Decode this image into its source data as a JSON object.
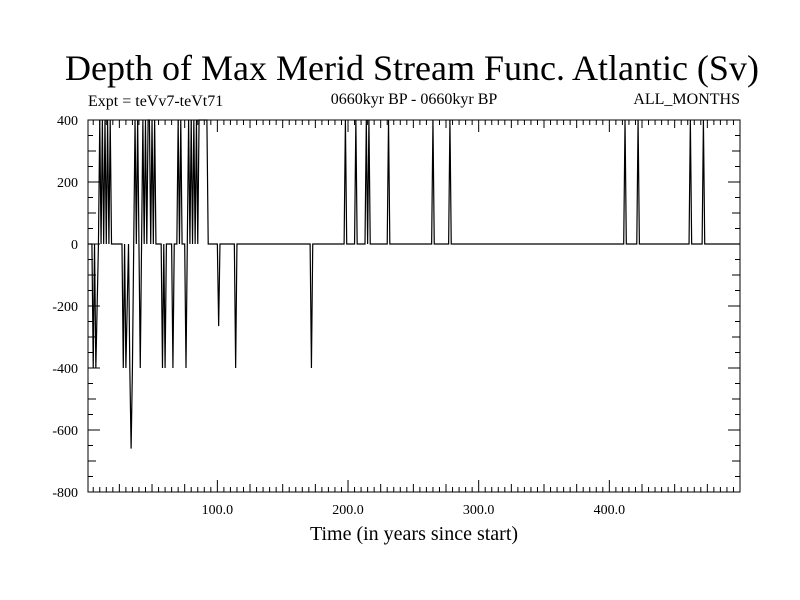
{
  "chart_data": {
    "type": "line",
    "title": "Depth of Max Merid Stream Func. Atlantic (Sv)",
    "expt_label": "Expt = teVv7-teVt71",
    "period_label": "0660kyr BP - 0660kyr BP",
    "months_label": "ALL_MONTHS",
    "xlabel": "Time (in years since start)",
    "ylabel": "",
    "xlim": [
      1,
      500
    ],
    "ylim": [
      -800,
      400
    ],
    "x_ticks": [
      100,
      200,
      300,
      400
    ],
    "x_tick_labels": [
      "100.0",
      "200.0",
      "300.0",
      "400.0"
    ],
    "y_ticks": [
      -800,
      -600,
      -400,
      -200,
      0,
      200,
      400
    ],
    "y_tick_labels": [
      "-800",
      "-600",
      "-400",
      "-200",
      "0",
      "200",
      "400"
    ],
    "grid": false,
    "series": [
      {
        "color": "#000000",
        "points": [
          [
            1,
            0
          ],
          [
            4,
            0
          ],
          [
            5,
            -400
          ],
          [
            6,
            0
          ],
          [
            7,
            -400
          ],
          [
            8,
            -200
          ],
          [
            9,
            0
          ],
          [
            10,
            400
          ],
          [
            11,
            0
          ],
          [
            12,
            400
          ],
          [
            13,
            0
          ],
          [
            14,
            400
          ],
          [
            15,
            0
          ],
          [
            16,
            400
          ],
          [
            17,
            0
          ],
          [
            18,
            400
          ],
          [
            19,
            0
          ],
          [
            20,
            0
          ],
          [
            27,
            0
          ],
          [
            28,
            -400
          ],
          [
            29,
            0
          ],
          [
            30,
            -400
          ],
          [
            31,
            -200
          ],
          [
            32,
            0
          ],
          [
            33,
            -400
          ],
          [
            34,
            -660
          ],
          [
            35,
            -400
          ],
          [
            36,
            0
          ],
          [
            37,
            400
          ],
          [
            38,
            0
          ],
          [
            39,
            400
          ],
          [
            40,
            0
          ],
          [
            41,
            -400
          ],
          [
            42,
            0
          ],
          [
            43,
            400
          ],
          [
            44,
            0
          ],
          [
            45,
            400
          ],
          [
            46,
            0
          ],
          [
            47,
            400
          ],
          [
            48,
            400
          ],
          [
            49,
            0
          ],
          [
            50,
            400
          ],
          [
            51,
            0
          ],
          [
            52,
            400
          ],
          [
            53,
            0
          ],
          [
            57,
            0
          ],
          [
            58,
            -400
          ],
          [
            59,
            0
          ],
          [
            60,
            -400
          ],
          [
            61,
            0
          ],
          [
            65,
            0
          ],
          [
            66,
            -400
          ],
          [
            67,
            0
          ],
          [
            69,
            0
          ],
          [
            70,
            400
          ],
          [
            71,
            0
          ],
          [
            72,
            400
          ],
          [
            73,
            0
          ],
          [
            75,
            0
          ],
          [
            76,
            -400
          ],
          [
            77,
            0
          ],
          [
            78,
            400
          ],
          [
            79,
            0
          ],
          [
            80,
            400
          ],
          [
            81,
            0
          ],
          [
            82,
            400
          ],
          [
            83,
            0
          ],
          [
            84,
            400
          ],
          [
            85,
            0
          ],
          [
            86,
            400
          ],
          [
            87,
            400
          ],
          [
            92,
            400
          ],
          [
            93,
            0
          ],
          [
            100,
            0
          ],
          [
            101,
            -265
          ],
          [
            102,
            0
          ],
          [
            113,
            0
          ],
          [
            114,
            -400
          ],
          [
            115,
            0
          ],
          [
            171,
            0
          ],
          [
            172,
            -400
          ],
          [
            173,
            0
          ],
          [
            197,
            0
          ],
          [
            198,
            400
          ],
          [
            199,
            0
          ],
          [
            205,
            0
          ],
          [
            206,
            400
          ],
          [
            207,
            0
          ],
          [
            213,
            0
          ],
          [
            214,
            400
          ],
          [
            215,
            0
          ],
          [
            216,
            400
          ],
          [
            217,
            0
          ],
          [
            230,
            0
          ],
          [
            231,
            400
          ],
          [
            232,
            0
          ],
          [
            264,
            0
          ],
          [
            265,
            400
          ],
          [
            266,
            0
          ],
          [
            277,
            0
          ],
          [
            278,
            400
          ],
          [
            279,
            0
          ],
          [
            411,
            0
          ],
          [
            412,
            400
          ],
          [
            413,
            0
          ],
          [
            421,
            0
          ],
          [
            422,
            400
          ],
          [
            423,
            0
          ],
          [
            461,
            0
          ],
          [
            462,
            400
          ],
          [
            463,
            0
          ],
          [
            471,
            0
          ],
          [
            472,
            400
          ],
          [
            473,
            0
          ],
          [
            500,
            0
          ]
        ]
      }
    ]
  }
}
